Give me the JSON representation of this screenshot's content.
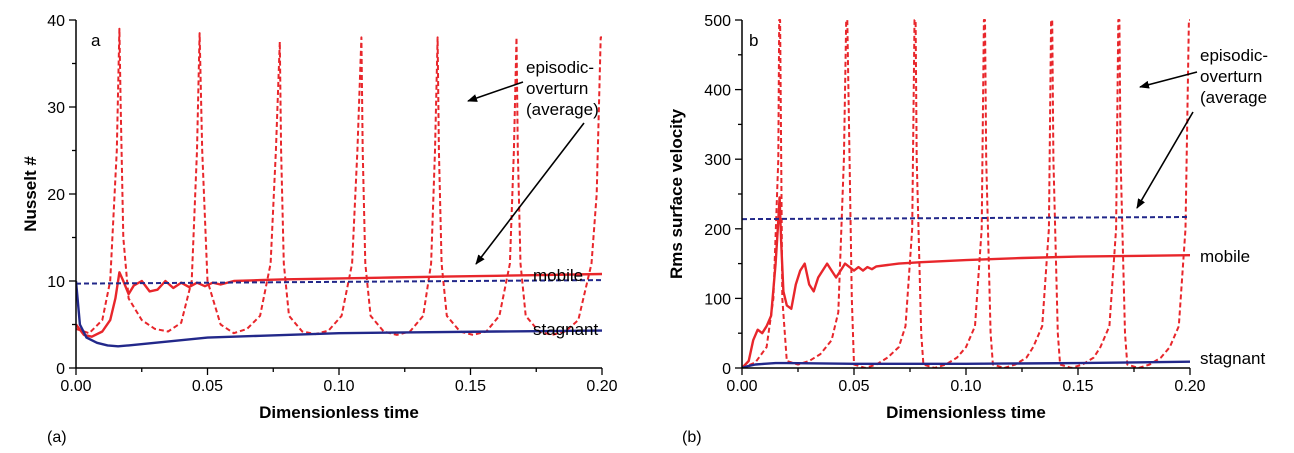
{
  "colors": {
    "mobile": "#e8262b",
    "episodic": "#e8262b",
    "stagnant": "#22288a",
    "average": "#22288a",
    "axis": "#000000"
  },
  "chart_data": [
    {
      "panel": "a",
      "caption": "(a)",
      "type": "line",
      "xlabel": "Dimensionless time",
      "ylabel": "Nusselt #",
      "xlim": [
        0,
        0.2
      ],
      "ylim": [
        0,
        40
      ],
      "xticks": [
        0,
        0.05,
        0.1,
        0.15,
        0.2
      ],
      "xtick_labels": [
        "0.00",
        "0.05",
        "0.10",
        "0.15",
        "0.20"
      ],
      "yticks": [
        0,
        10,
        20,
        30,
        40
      ],
      "ytick_labels": [
        "0",
        "10",
        "20",
        "30",
        "40"
      ],
      "annotations": {
        "episodic": [
          "episodic-",
          "overturn",
          "(average)"
        ],
        "mobile": "mobile",
        "stagnant": "stagnant"
      },
      "series": [
        {
          "key": "episodic",
          "style": "dashed",
          "x": [
            0.0,
            0.005,
            0.01,
            0.013,
            0.0155,
            0.0165,
            0.017,
            0.018,
            0.02,
            0.025,
            0.03,
            0.035,
            0.04,
            0.044,
            0.046,
            0.047,
            0.048,
            0.05,
            0.055,
            0.06,
            0.065,
            0.07,
            0.074,
            0.076,
            0.0775,
            0.078,
            0.079,
            0.081,
            0.086,
            0.091,
            0.096,
            0.101,
            0.105,
            0.107,
            0.1085,
            0.109,
            0.11,
            0.112,
            0.117,
            0.122,
            0.127,
            0.132,
            0.135,
            0.1365,
            0.1375,
            0.138,
            0.139,
            0.141,
            0.146,
            0.151,
            0.156,
            0.161,
            0.165,
            0.1665,
            0.1675,
            0.168,
            0.169,
            0.171,
            0.176,
            0.181,
            0.186,
            0.191,
            0.196,
            0.198,
            0.1995,
            0.2
          ],
          "y": [
            4.5,
            4.0,
            5.5,
            10,
            25,
            39,
            30,
            15,
            8,
            5.5,
            4.5,
            4.2,
            5.2,
            10,
            25,
            38.5,
            25,
            10,
            5,
            4,
            4.5,
            6,
            12,
            25,
            37.5,
            25,
            12,
            6,
            4.2,
            3.9,
            4.3,
            6,
            12,
            25,
            38,
            25,
            12,
            6,
            4.2,
            3.8,
            4.2,
            6,
            12,
            25,
            38,
            25,
            12,
            6,
            4.2,
            3.8,
            4.2,
            6,
            12,
            25,
            38,
            25,
            12,
            6,
            4.2,
            3.8,
            4.2,
            5.5,
            12,
            20,
            38,
            38
          ]
        },
        {
          "key": "mobile",
          "style": "solid",
          "x": [
            0.0,
            0.003,
            0.006,
            0.01,
            0.013,
            0.015,
            0.0165,
            0.018,
            0.02,
            0.022,
            0.025,
            0.028,
            0.031,
            0.034,
            0.037,
            0.04,
            0.043,
            0.046,
            0.049,
            0.052,
            0.055,
            0.06,
            0.07,
            0.08,
            0.1,
            0.12,
            0.14,
            0.16,
            0.18,
            0.2
          ],
          "y": [
            5,
            3.8,
            3.6,
            4.2,
            5.5,
            8,
            11,
            10,
            8.5,
            9.5,
            10,
            8.8,
            9,
            10,
            9.2,
            9.8,
            9.3,
            9.8,
            9.4,
            9.8,
            9.6,
            10,
            10.1,
            10.2,
            10.3,
            10.4,
            10.5,
            10.6,
            10.7,
            10.8
          ]
        },
        {
          "key": "average",
          "style": "dashed",
          "x": [
            0.0,
            0.2
          ],
          "y": [
            9.7,
            10.1
          ]
        },
        {
          "key": "stagnant",
          "style": "solid",
          "x": [
            0.0,
            0.0015,
            0.004,
            0.008,
            0.012,
            0.016,
            0.02,
            0.03,
            0.04,
            0.05,
            0.07,
            0.1,
            0.13,
            0.16,
            0.2
          ],
          "y": [
            10,
            5,
            3.5,
            2.9,
            2.6,
            2.5,
            2.6,
            2.9,
            3.2,
            3.5,
            3.7,
            4.0,
            4.1,
            4.2,
            4.3
          ]
        }
      ]
    },
    {
      "panel": "b",
      "caption": "(b)",
      "type": "line",
      "xlabel": "Dimensionless time",
      "ylabel": "Rms surface velocity",
      "xlim": [
        0,
        0.2
      ],
      "ylim": [
        0,
        500
      ],
      "xticks": [
        0,
        0.05,
        0.1,
        0.15,
        0.2
      ],
      "xtick_labels": [
        "0.00",
        "0.05",
        "0.10",
        "0.15",
        "0.20"
      ],
      "yticks": [
        0,
        100,
        200,
        300,
        400,
        500
      ],
      "ytick_labels": [
        "0",
        "100",
        "200",
        "300",
        "400",
        "500"
      ],
      "annotations": {
        "episodic": [
          "episodic-",
          "overturn",
          "(average"
        ],
        "mobile": "mobile",
        "stagnant": "stagnant"
      },
      "series": [
        {
          "key": "episodic",
          "style": "dashed",
          "x": [
            0.0,
            0.006,
            0.011,
            0.014,
            0.0162,
            0.0166,
            0.017,
            0.0175,
            0.018,
            0.02,
            0.025,
            0.03,
            0.035,
            0.04,
            0.043,
            0.0455,
            0.0465,
            0.047,
            0.049,
            0.05,
            0.055,
            0.06,
            0.065,
            0.07,
            0.073,
            0.076,
            0.077,
            0.0775,
            0.078,
            0.08,
            0.081,
            0.086,
            0.091,
            0.096,
            0.1,
            0.104,
            0.107,
            0.108,
            0.1085,
            0.109,
            0.111,
            0.112,
            0.117,
            0.122,
            0.127,
            0.13,
            0.134,
            0.137,
            0.138,
            0.1385,
            0.139,
            0.141,
            0.142,
            0.147,
            0.152,
            0.157,
            0.16,
            0.164,
            0.167,
            0.168,
            0.1685,
            0.169,
            0.171,
            0.172,
            0.177,
            0.182,
            0.187,
            0.191,
            0.195,
            0.198,
            0.1995,
            0.2
          ],
          "y": [
            0,
            8,
            30,
            100,
            300,
            500,
            500,
            300,
            100,
            10,
            5,
            10,
            20,
            40,
            80,
            300,
            500,
            500,
            100,
            5,
            0,
            5,
            15,
            30,
            60,
            200,
            500,
            500,
            300,
            50,
            5,
            0,
            5,
            15,
            30,
            60,
            200,
            500,
            500,
            300,
            50,
            5,
            0,
            5,
            15,
            30,
            60,
            200,
            500,
            500,
            300,
            50,
            5,
            0,
            5,
            15,
            30,
            60,
            200,
            500,
            500,
            300,
            50,
            5,
            0,
            5,
            15,
            30,
            60,
            200,
            500,
            500
          ]
        },
        {
          "key": "mobile",
          "style": "solid",
          "x": [
            0.0,
            0.003,
            0.005,
            0.007,
            0.009,
            0.011,
            0.013,
            0.015,
            0.016,
            0.0168,
            0.0175,
            0.0185,
            0.02,
            0.022,
            0.024,
            0.026,
            0.028,
            0.03,
            0.032,
            0.034,
            0.036,
            0.038,
            0.04,
            0.042,
            0.044,
            0.046,
            0.048,
            0.05,
            0.052,
            0.054,
            0.056,
            0.058,
            0.06,
            0.065,
            0.07,
            0.08,
            0.1,
            0.125,
            0.15,
            0.2
          ],
          "y": [
            0,
            10,
            40,
            55,
            50,
            60,
            75,
            150,
            200,
            245,
            180,
            110,
            90,
            85,
            120,
            140,
            150,
            120,
            110,
            130,
            140,
            150,
            140,
            130,
            140,
            150,
            145,
            140,
            145,
            140,
            145,
            142,
            146,
            148,
            150,
            152,
            155,
            158,
            160,
            162
          ]
        },
        {
          "key": "average",
          "style": "dashed",
          "x": [
            0.0,
            0.2
          ],
          "y": [
            214,
            217
          ]
        },
        {
          "key": "stagnant",
          "style": "solid",
          "x": [
            0.0,
            0.003,
            0.006,
            0.01,
            0.015,
            0.02,
            0.05,
            0.1,
            0.15,
            0.2
          ],
          "y": [
            0,
            3,
            5,
            6,
            7,
            7,
            6,
            6,
            7,
            9
          ]
        }
      ]
    }
  ]
}
